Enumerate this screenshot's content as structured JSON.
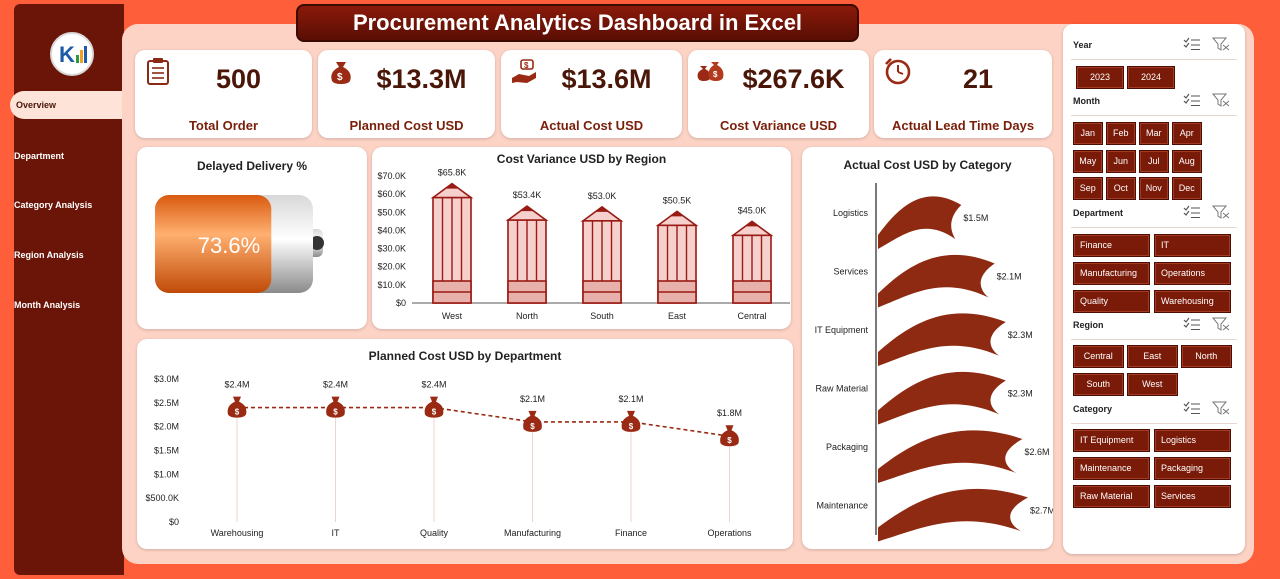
{
  "title": "Procurement Analytics Dashboard in Excel",
  "sidebar": {
    "items": [
      {
        "label": "Overview"
      },
      {
        "label": "Department"
      },
      {
        "label": "Category Analysis"
      },
      {
        "label": "Region Analysis"
      },
      {
        "label": "Month Analysis"
      }
    ],
    "logo_text": "K"
  },
  "kpis": [
    {
      "value": "500",
      "label": "Total Order",
      "icon": "clipboard-icon"
    },
    {
      "value": "$13.3M",
      "label": "Planned Cost USD",
      "icon": "money-bag-icon"
    },
    {
      "value": "$13.6M",
      "label": "Actual Cost USD",
      "icon": "hand-money-icon"
    },
    {
      "value": "$267.6K",
      "label": "Cost Variance USD",
      "icon": "money-bags-icon"
    },
    {
      "value": "21",
      "label": "Actual Lead Time Days",
      "icon": "clock-icon"
    }
  ],
  "delayed": {
    "title": "Delayed Delivery %",
    "value_label": "73.6%",
    "value": 0.736
  },
  "variance_chart": {
    "title": "Cost Variance USD by Region",
    "yticks": [
      "$0",
      "$10.0K",
      "$20.0K",
      "$30.0K",
      "$40.0K",
      "$50.0K",
      "$60.0K",
      "$70.0K"
    ]
  },
  "category_chart": {
    "title": "Actual Cost USD by Category"
  },
  "dept_chart": {
    "title": "Planned Cost USD by Department",
    "yticks": [
      "$0",
      "$500.0K",
      "$1.0M",
      "$1.5M",
      "$2.0M",
      "$2.5M",
      "$3.0M"
    ]
  },
  "chart_data": [
    {
      "type": "bar",
      "title": "Cost Variance USD by Region",
      "categories": [
        "West",
        "North",
        "South",
        "East",
        "Central"
      ],
      "values": [
        65800,
        53400,
        53000,
        50500,
        45000
      ],
      "data_labels": [
        "$65.8K",
        "$53.4K",
        "$53.0K",
        "$50.5K",
        "$45.0K"
      ],
      "ylim": [
        0,
        70000
      ]
    },
    {
      "type": "bar",
      "title": "Actual Cost USD by Category",
      "orientation": "horizontal",
      "categories": [
        "Logistics",
        "Services",
        "IT Equipment",
        "Raw Material",
        "Packaging",
        "Maintenance"
      ],
      "values": [
        1.5,
        2.1,
        2.3,
        2.3,
        2.6,
        2.7
      ],
      "data_labels": [
        "$1.5M",
        "$2.1M",
        "$2.3M",
        "$2.3M",
        "$2.6M",
        "$2.7M"
      ]
    },
    {
      "type": "line",
      "title": "Planned Cost USD by Department",
      "categories": [
        "Warehousing",
        "IT",
        "Quality",
        "Manufacturing",
        "Finance",
        "Operations"
      ],
      "values": [
        2.4,
        2.4,
        2.4,
        2.1,
        2.1,
        1.8
      ],
      "data_labels": [
        "$2.4M",
        "$2.4M",
        "$2.4M",
        "$2.1M",
        "$2.1M",
        "$1.8M"
      ],
      "ylim": [
        0,
        3.0
      ]
    }
  ],
  "slicers": [
    {
      "name": "Year",
      "items": [
        "2023",
        "2024"
      ]
    },
    {
      "name": "Month",
      "items": [
        "Jan",
        "Feb",
        "Mar",
        "Apr",
        "May",
        "Jun",
        "Jul",
        "Aug",
        "Sep",
        "Oct",
        "Nov",
        "Dec"
      ]
    },
    {
      "name": "Department",
      "items": [
        "Finance",
        "IT",
        "Manufacturing",
        "Operations",
        "Quality",
        "Warehousing"
      ]
    },
    {
      "name": "Region",
      "items": [
        "Central",
        "East",
        "North",
        "South",
        "West"
      ]
    },
    {
      "name": "Category",
      "items": [
        "IT Equipment",
        "Logistics",
        "Maintenance",
        "Packaging",
        "Raw Material",
        "Services"
      ]
    }
  ],
  "colors": {
    "accent": "#7A1A08",
    "background": "#FF5E3A",
    "panel": "#FDD3C5",
    "sidebar": "#6A1508",
    "battery": "#F07A2A"
  }
}
